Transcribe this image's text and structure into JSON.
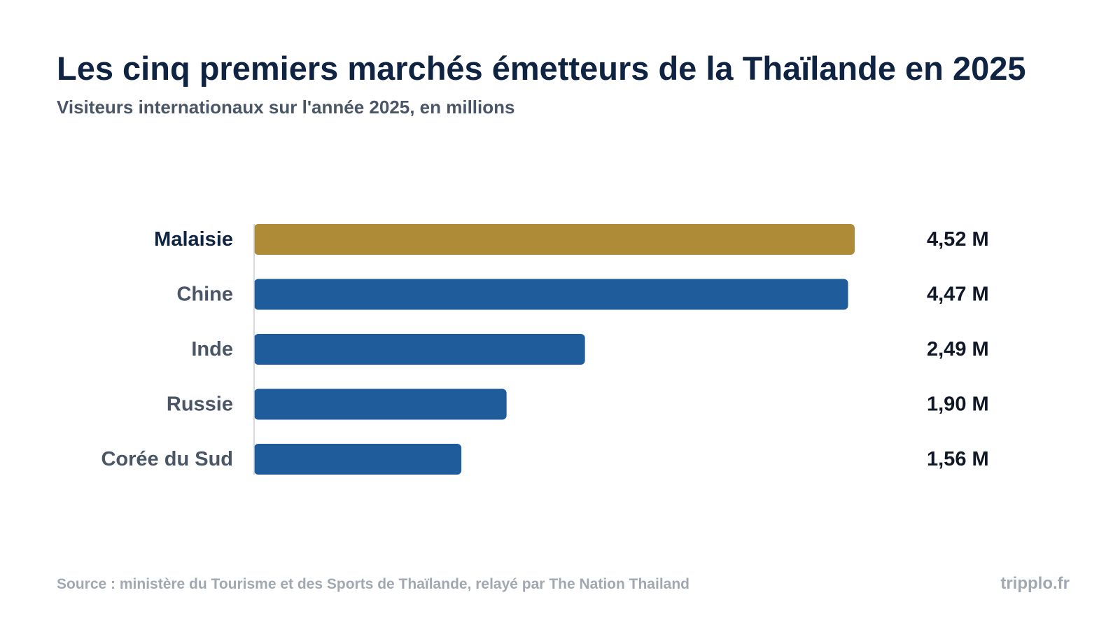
{
  "title": "Les cinq premiers marchés émetteurs de la Thaïlande en 2025",
  "subtitle": "Visiteurs internationaux sur l'année 2025, en millions",
  "footer": {
    "source": "Source : ministère du Tourisme et des Sports de Thaïlande, relayé par The Nation Thailand",
    "brand": "tripplo.fr"
  },
  "colors": {
    "highlight": "#ae8b36",
    "bar": "#1f5c9b",
    "label_highlight": "#0f2342",
    "label": "#4a5566",
    "value": "#101828"
  },
  "chart_data": {
    "type": "bar",
    "orientation": "horizontal",
    "categories": [
      "Malaisie",
      "Chine",
      "Inde",
      "Russie",
      "Corée du Sud"
    ],
    "values": [
      4.52,
      4.47,
      2.49,
      1.9,
      1.56
    ],
    "value_labels": [
      "4,52 M",
      "4,47 M",
      "2,49 M",
      "1,90 M",
      "1,56 M"
    ],
    "highlight_index": 0,
    "xlim": [
      0,
      4.52
    ],
    "grid": false,
    "legend": "none"
  }
}
